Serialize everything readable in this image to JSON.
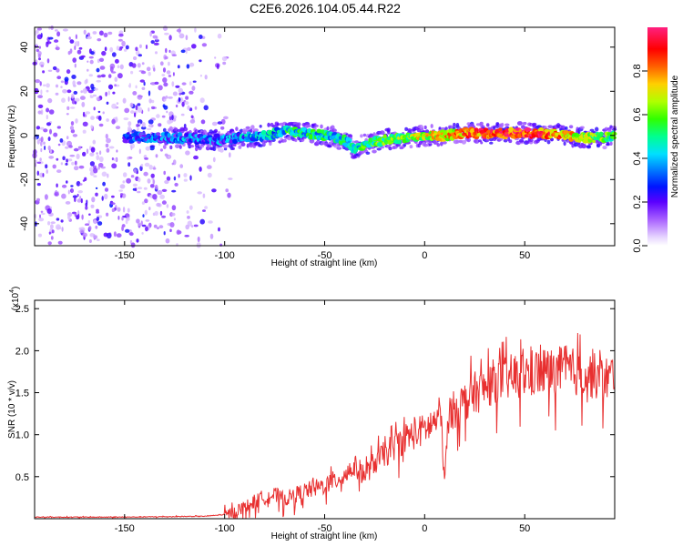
{
  "title": "C2E6.2026.104.05.44.R22",
  "chart_data": [
    {
      "type": "heatmap",
      "name": "spectrogram",
      "xlabel": "Height of straight line (km)",
      "ylabel": "Frequency (Hz)",
      "xlim": [
        -195,
        95
      ],
      "ylim": [
        -50,
        49
      ],
      "xticks": [
        -150,
        -100,
        -50,
        0,
        50
      ],
      "yticks": [
        -40,
        -20,
        0,
        20,
        40
      ],
      "colorbar": {
        "label": "Normalized spectral amplitude",
        "range": [
          0.0,
          1.0
        ],
        "ticks": [
          0.0,
          0.2,
          0.4,
          0.6,
          0.8
        ],
        "tick_labels": [
          "0.0",
          "0.2",
          "0.4",
          "0.6",
          "0.8"
        ]
      },
      "trace": {
        "x": [
          -195,
          -150,
          -130,
          -100,
          -80,
          -70,
          -60,
          -50,
          -40,
          -35,
          -30,
          -20,
          -10,
          0,
          10,
          20,
          30,
          40,
          50,
          60,
          70,
          80,
          90,
          95
        ],
        "freq": [
          0,
          -1,
          -1,
          -2,
          0,
          2,
          1,
          0,
          -2,
          -6,
          -4,
          -2,
          -1,
          0,
          0,
          1,
          1,
          1,
          1,
          1,
          0,
          -1,
          -1,
          0
        ],
        "amplitude": [
          0.15,
          0.2,
          0.3,
          0.3,
          0.4,
          0.45,
          0.45,
          0.45,
          0.45,
          0.4,
          0.5,
          0.55,
          0.6,
          0.65,
          0.7,
          0.8,
          0.85,
          0.85,
          0.9,
          0.85,
          0.75,
          0.65,
          0.55,
          0.5
        ]
      }
    },
    {
      "type": "line",
      "name": "snr",
      "xlabel": "Height of straight line (km)",
      "ylabel": "SNR (10 * v/v)",
      "scale_label": "(x10",
      "scale_exponent": "4",
      "xlim": [
        -195,
        95
      ],
      "ylim": [
        0.0,
        2.6
      ],
      "xticks": [
        -150,
        -100,
        -50,
        0,
        50
      ],
      "yticks": [
        0.5,
        1.0,
        1.5,
        2.0,
        2.5
      ],
      "ytick_labels": [
        "0.5",
        "1.0",
        "1.5",
        "2.0",
        "2.5"
      ],
      "color": "#e83030",
      "series": [
        {
          "name": "SNR",
          "x": [
            -195,
            -150,
            -110,
            -100,
            -95,
            -90,
            -85,
            -80,
            -75,
            -70,
            -65,
            -60,
            -55,
            -50,
            -45,
            -40,
            -35,
            -30,
            -25,
            -20,
            -15,
            -10,
            -5,
            0,
            5,
            8,
            10,
            12,
            15,
            20,
            25,
            30,
            35,
            40,
            45,
            50,
            55,
            60,
            65,
            70,
            75,
            80,
            85,
            90,
            95
          ],
          "y": [
            0.02,
            0.02,
            0.03,
            0.05,
            0.1,
            0.15,
            0.22,
            0.28,
            0.3,
            0.25,
            0.3,
            0.35,
            0.38,
            0.42,
            0.48,
            0.55,
            0.65,
            0.55,
            0.7,
            0.8,
            0.9,
            1.0,
            1.05,
            1.1,
            1.2,
            1.3,
            0.45,
            1.3,
            1.35,
            1.45,
            1.55,
            1.6,
            1.7,
            1.72,
            1.75,
            1.78,
            1.8,
            1.82,
            1.8,
            1.85,
            1.8,
            1.78,
            1.75,
            1.72,
            1.75
          ]
        }
      ]
    }
  ]
}
